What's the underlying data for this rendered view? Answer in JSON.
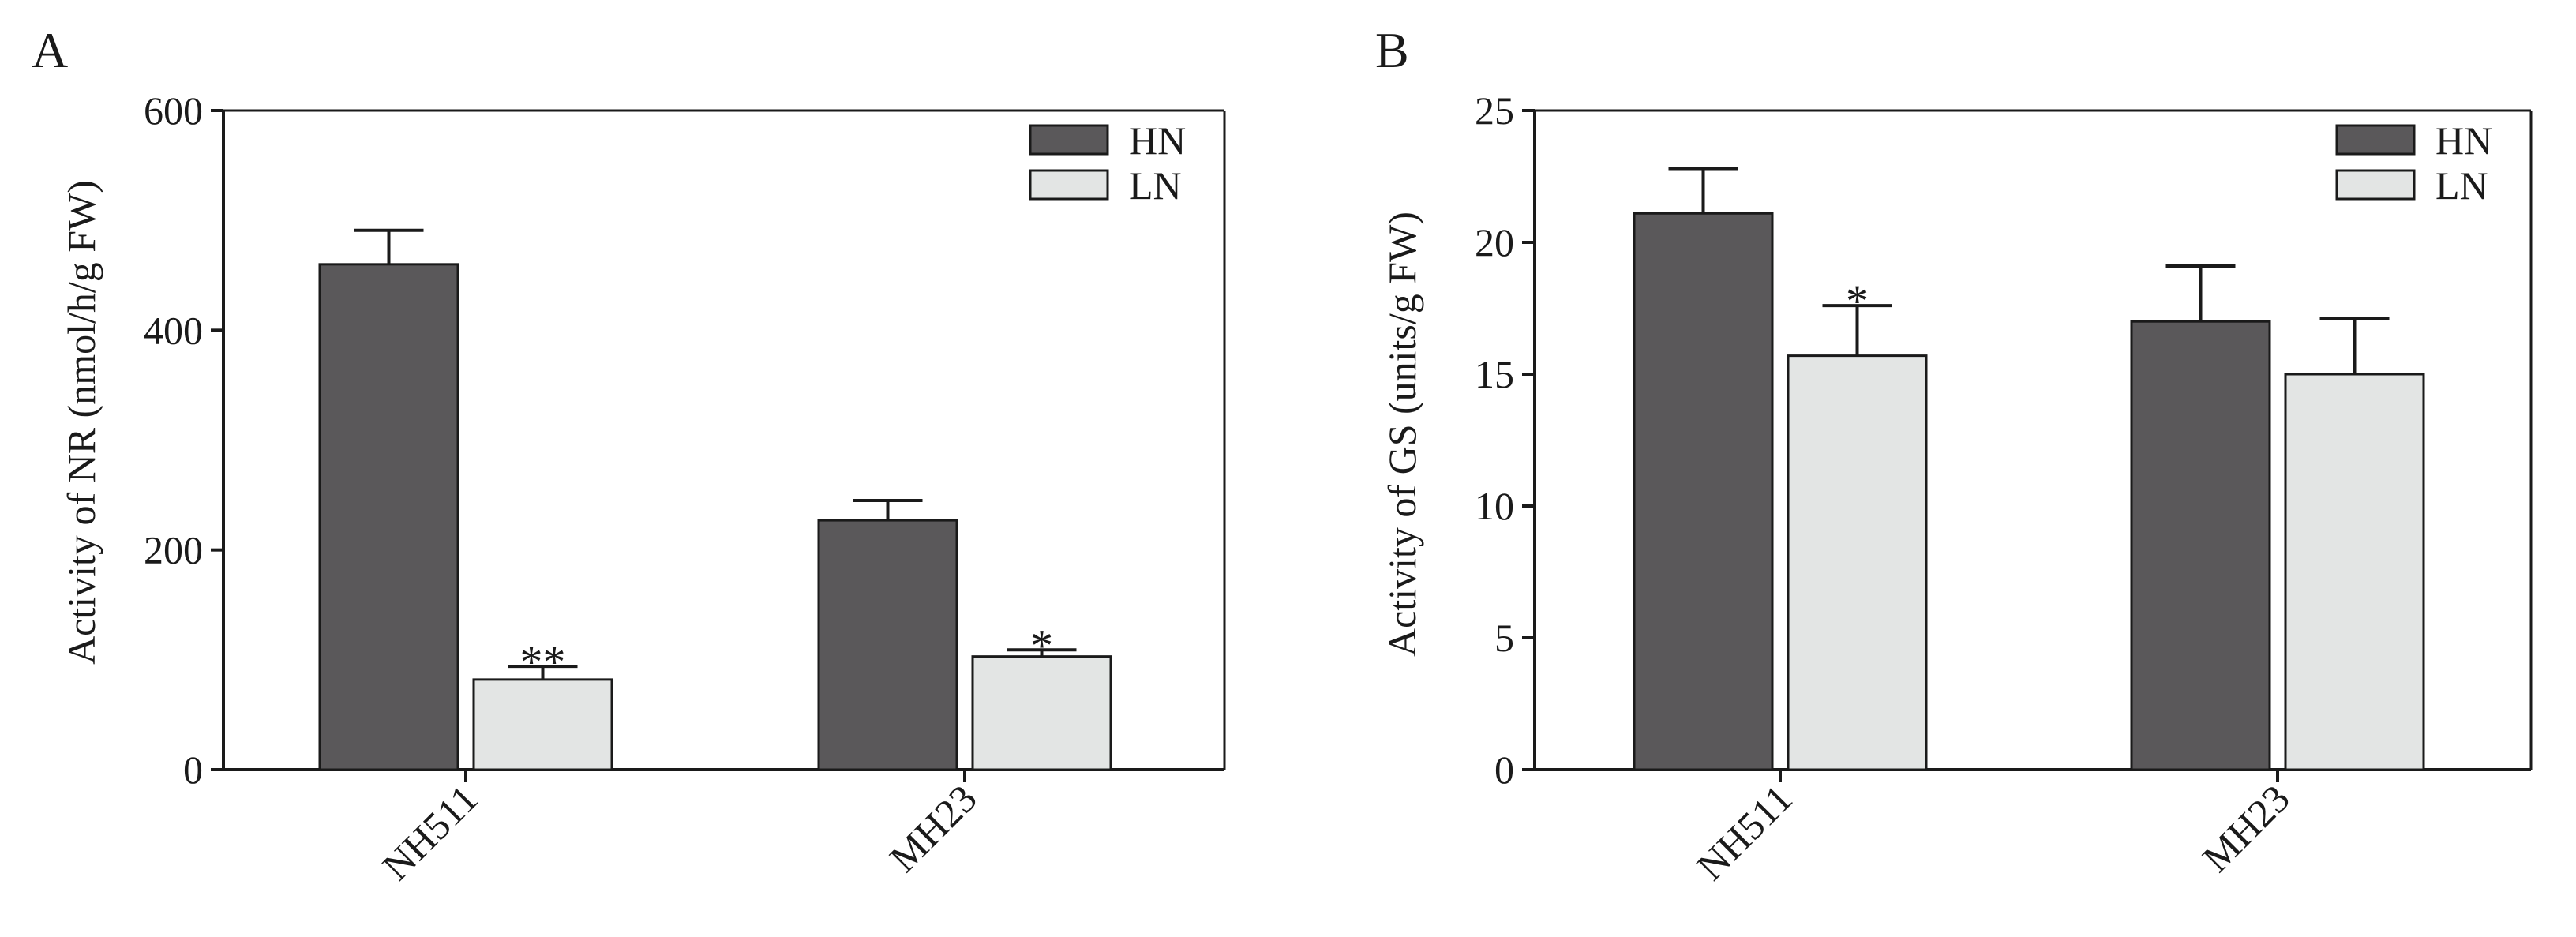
{
  "colors": {
    "HN": "#5a585a",
    "LN": "#e3e5e4",
    "axis": "#1a1a1a"
  },
  "chart_data": [
    {
      "panel": "A",
      "type": "bar",
      "ylabel": "Activity of NR (nmol/h/g FW)",
      "ylim": [
        0,
        600
      ],
      "yticks": [
        0,
        200,
        400,
        600
      ],
      "categories": [
        "NH511",
        "MH23"
      ],
      "series": [
        {
          "name": "HN",
          "values": [
            460,
            227
          ],
          "errors": [
            31,
            18
          ]
        },
        {
          "name": "LN",
          "values": [
            82,
            103
          ],
          "errors": [
            12,
            6
          ]
        }
      ],
      "significance": [
        {
          "category": "NH511",
          "series": "LN",
          "label": "**"
        },
        {
          "category": "MH23",
          "series": "LN",
          "label": "*"
        }
      ],
      "legend": {
        "position": "top-right",
        "labels": [
          "HN",
          "LN"
        ]
      }
    },
    {
      "panel": "B",
      "type": "bar",
      "ylabel": "Activity of GS (units/g FW)",
      "ylim": [
        0,
        25
      ],
      "yticks": [
        0,
        5,
        10,
        15,
        20,
        25
      ],
      "categories": [
        "NH511",
        "MH23"
      ],
      "series": [
        {
          "name": "HN",
          "values": [
            21.1,
            17.0
          ],
          "errors": [
            1.7,
            2.1
          ]
        },
        {
          "name": "LN",
          "values": [
            15.7,
            15.0
          ],
          "errors": [
            1.9,
            2.1
          ]
        }
      ],
      "significance": [
        {
          "category": "NH511",
          "series": "LN",
          "label": "*"
        }
      ],
      "legend": {
        "position": "top-right",
        "labels": [
          "HN",
          "LN"
        ]
      }
    }
  ]
}
